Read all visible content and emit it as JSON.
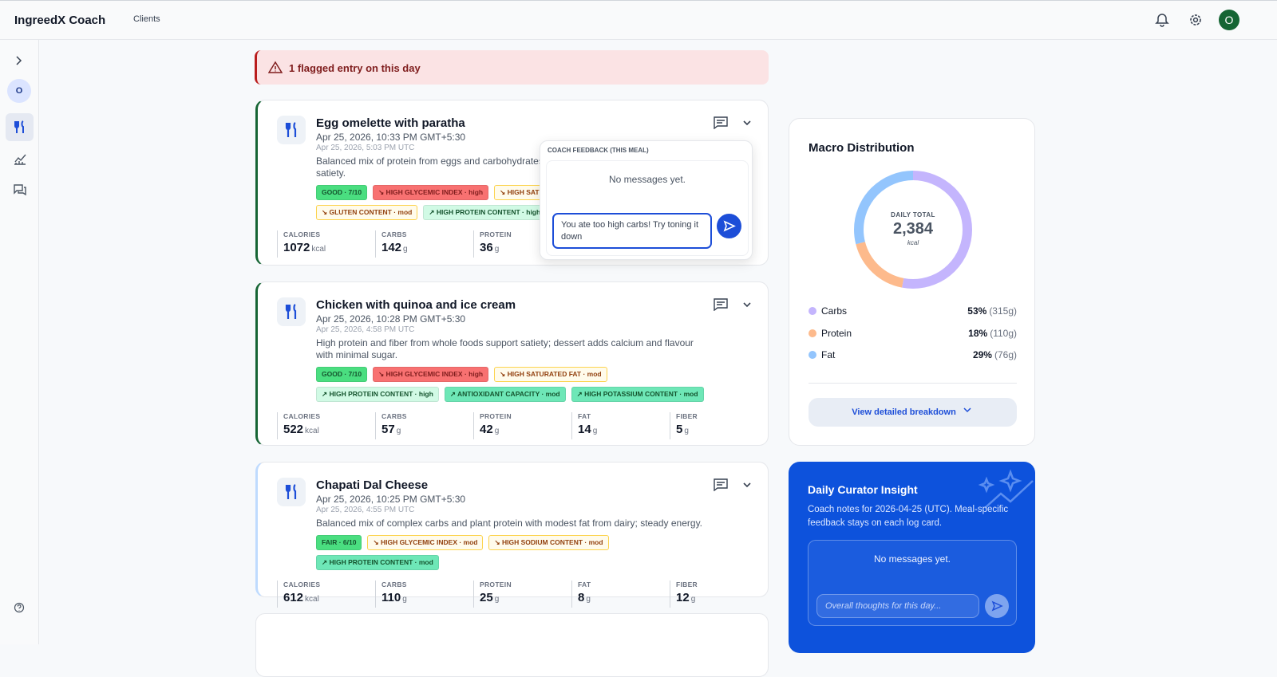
{
  "header": {
    "brand": "IngreedX Coach",
    "nav": "Clients",
    "avatar": "O"
  },
  "sidebar": {
    "avatar": "O"
  },
  "alert": "1 flagged entry on this day",
  "meals": [
    {
      "title": "Egg omelette with paratha",
      "local_time": "Apr 25, 2026, 10:33 PM GMT+5:30",
      "utc_time": "Apr 25, 2026, 5:03 PM UTC",
      "description": "Balanced mix of protein from eggs and carbohydrates from paratha supports energy and satiety.",
      "accent": "#166534",
      "tags": [
        {
          "text": "GOOD · 7/10",
          "color": "#4ade80"
        },
        {
          "text": "↘ HIGH GLYCEMIC INDEX · high",
          "color": "#f87171"
        },
        {
          "text": "↘ HIGH SATURATED FAT · mod",
          "color": "#fffbeb"
        },
        {
          "text": "↘ GLUTEN CONTENT · mod",
          "color": "#fffbeb"
        },
        {
          "text": "↗ HIGH PROTEIN CONTENT · high",
          "color": "#d1fae5"
        }
      ],
      "stats": [
        {
          "label": "CALORIES",
          "value": 1072,
          "unit": "kcal"
        },
        {
          "label": "CARBS",
          "value": 142,
          "unit": "g"
        },
        {
          "label": "PROTEIN",
          "value": 36,
          "unit": "g"
        }
      ]
    },
    {
      "title": "Chicken with quinoa and ice cream",
      "local_time": "Apr 25, 2026, 10:28 PM GMT+5:30",
      "utc_time": "Apr 25, 2026, 4:58 PM UTC",
      "description": "High protein and fiber from whole foods support satiety; dessert adds calcium and flavour with minimal sugar.",
      "accent": "#166534",
      "tags": [
        {
          "text": "GOOD · 7/10",
          "color": "#4ade80"
        },
        {
          "text": "↘ HIGH GLYCEMIC INDEX · high",
          "color": "#f87171"
        },
        {
          "text": "↘ HIGH SATURATED FAT · mod",
          "color": "#fffbeb"
        },
        {
          "text": "↗ HIGH PROTEIN CONTENT · high",
          "color": "#d1fae5"
        },
        {
          "text": "↗ ANTIOXIDANT CAPACITY · mod",
          "color": "#6ee7b7"
        },
        {
          "text": "↗ HIGH POTASSIUM CONTENT · mod",
          "color": "#6ee7b7"
        }
      ],
      "stats": [
        {
          "label": "CALORIES",
          "value": 522,
          "unit": "kcal"
        },
        {
          "label": "CARBS",
          "value": 57,
          "unit": "g"
        },
        {
          "label": "PROTEIN",
          "value": 42,
          "unit": "g"
        },
        {
          "label": "FAT",
          "value": 14,
          "unit": "g"
        },
        {
          "label": "FIBER",
          "value": 5,
          "unit": "g"
        }
      ]
    },
    {
      "title": "Chapati Dal Cheese",
      "local_time": "Apr 25, 2026, 10:25 PM GMT+5:30",
      "utc_time": "Apr 25, 2026, 4:55 PM UTC",
      "description": "Balanced mix of complex carbs and plant protein with modest fat from dairy; steady energy.",
      "accent": "#bfdbfe",
      "tags": [
        {
          "text": "FAIR · 6/10",
          "color": "#4ade80"
        },
        {
          "text": "↘ HIGH GLYCEMIC INDEX · mod",
          "color": "#fffbeb"
        },
        {
          "text": "↘ HIGH SODIUM CONTENT · mod",
          "color": "#fffbeb"
        },
        {
          "text": "↗ HIGH PROTEIN CONTENT · mod",
          "color": "#6ee7b7"
        }
      ],
      "stats": [
        {
          "label": "CALORIES",
          "value": 612,
          "unit": "kcal"
        },
        {
          "label": "CARBS",
          "value": 110,
          "unit": "g"
        },
        {
          "label": "PROTEIN",
          "value": 25,
          "unit": "g"
        },
        {
          "label": "FAT",
          "value": 8,
          "unit": "g"
        },
        {
          "label": "FIBER",
          "value": 12,
          "unit": "g"
        }
      ]
    }
  ],
  "feedback_popup": {
    "title": "COACH FEEDBACK (THIS MEAL)",
    "empty": "No messages yet.",
    "draft": "You ate too high carbs! Try toning it down"
  },
  "macro": {
    "title": "Macro Distribution",
    "center_label": "DAILY TOTAL",
    "total": "2,384",
    "unit": "kcal",
    "items": [
      {
        "name": "Carbs",
        "value": 53,
        "value_label": "53%",
        "grams": "(315g)",
        "color": "#c4b5fd"
      },
      {
        "name": "Protein",
        "value": 18,
        "value_label": "18%",
        "grams": "(110g)",
        "color": "#fdba8c"
      },
      {
        "name": "Fat",
        "value": 29,
        "value_label": "29%",
        "grams": "(76g)",
        "color": "#93c5fd"
      }
    ],
    "button": "View detailed breakdown"
  },
  "insight": {
    "title": "Daily Curator Insight",
    "text": "Coach notes for 2026-04-25 (UTC). Meal-specific feedback stays on each log card.",
    "empty": "No messages yet.",
    "placeholder": "Overall thoughts for this day..."
  }
}
